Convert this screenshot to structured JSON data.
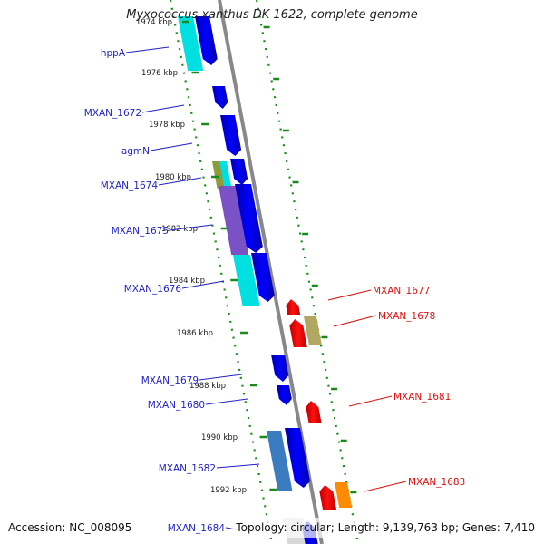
{
  "title": "Myxococcus xanthus DK 1622, complete genome",
  "footer": {
    "accession": "Accession: NC_008095",
    "topology": "Topology: circular; Length: 9,139,763 bp; Genes: 7,410"
  },
  "ticks": [
    "1974 kbp",
    "1976 kbp",
    "1978 kbp",
    "1980 kbp",
    "1982 kbp",
    "1984 kbp",
    "1986 kbp",
    "1988 kbp",
    "1990 kbp",
    "1992 kbp"
  ],
  "genes_forward": [
    "hppA",
    "MXAN_1672",
    "agmN",
    "MXAN_1674",
    "MXAN_1675",
    "MXAN_1676",
    "MXAN_1679",
    "MXAN_1680",
    "MXAN_1682",
    "MXAN_1684"
  ],
  "genes_reverse": [
    "MXAN_1677",
    "MXAN_1678",
    "MXAN_1681",
    "MXAN_1683"
  ],
  "colors": {
    "forward_label": "#1f1fc8",
    "reverse_label": "#e01010",
    "forward_gene": "#0000ee",
    "reverse_gene": "#ee0000",
    "ruler_green": "#1a8a1a",
    "backbone": "#888888"
  }
}
